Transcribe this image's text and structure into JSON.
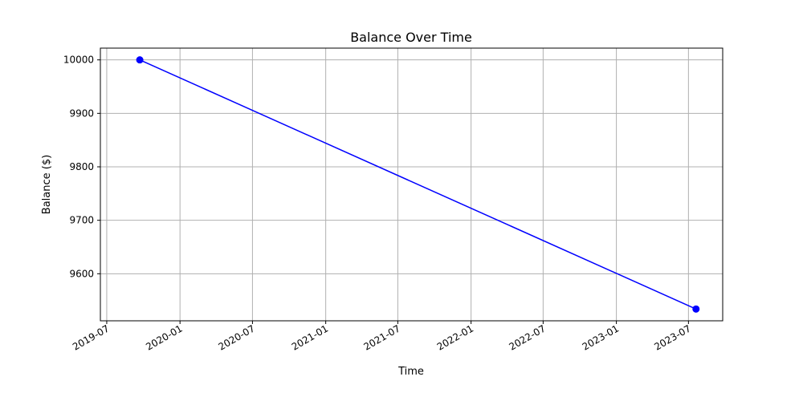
{
  "chart_data": {
    "type": "line",
    "title": "Balance Over Time",
    "xlabel": "Time",
    "ylabel": "Balance ($)",
    "x_axis_type": "date",
    "grid": true,
    "line_color": "#0000ff",
    "xlim": [
      "2019-06-15",
      "2023-09-25"
    ],
    "ylim": [
      9512,
      10022
    ],
    "x_ticks": [
      "2019-07",
      "2020-01",
      "2020-07",
      "2021-01",
      "2021-07",
      "2022-01",
      "2022-07",
      "2023-01",
      "2023-07"
    ],
    "y_ticks": [
      9600,
      9700,
      9800,
      9900,
      10000
    ],
    "series": [
      {
        "x": [
          "2019-09-22",
          "2023-07-20"
        ],
        "values": [
          10000,
          9534
        ],
        "marker": "circle"
      }
    ]
  }
}
